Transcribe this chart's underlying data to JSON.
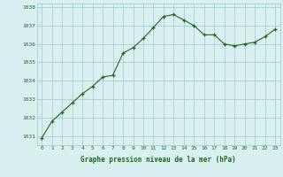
{
  "x": [
    0,
    1,
    2,
    3,
    4,
    5,
    6,
    7,
    8,
    9,
    10,
    11,
    12,
    13,
    14,
    15,
    16,
    17,
    18,
    19,
    20,
    21,
    22,
    23
  ],
  "y": [
    1030.9,
    1031.8,
    1032.3,
    1032.8,
    1033.3,
    1033.7,
    1034.2,
    1034.3,
    1035.5,
    1035.8,
    1036.3,
    1036.9,
    1037.5,
    1037.6,
    1037.3,
    1037.0,
    1036.5,
    1036.5,
    1036.0,
    1035.9,
    1036.0,
    1036.1,
    1036.4,
    1036.8
  ],
  "bg_color": "#d8f0f0",
  "line_color": "#1a6b1a",
  "marker_color": "#1a6b1a",
  "grid_color": "#a0c8c8",
  "xlabel": "Graphe pression niveau de la mer (hPa)",
  "xlabel_color": "#1a6b1a",
  "tick_color": "#1a6b1a",
  "ymin": 1030.5,
  "ymax": 1038.2,
  "yticks": [
    1031,
    1032,
    1033,
    1034,
    1035,
    1036,
    1037,
    1038
  ],
  "xticks": [
    0,
    1,
    2,
    3,
    4,
    5,
    6,
    7,
    8,
    9,
    10,
    11,
    12,
    13,
    14,
    15,
    16,
    17,
    18,
    19,
    20,
    21,
    22,
    23
  ]
}
